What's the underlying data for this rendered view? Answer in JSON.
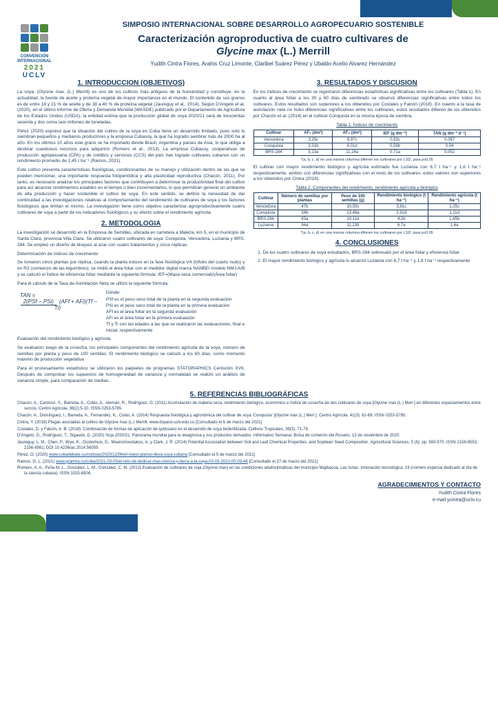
{
  "header": {
    "symposium": "SIMPOSIO INTERNACIONAL SOBRE DESARROLLO AGROPECUARIO SOSTENIBLE",
    "title_line1": "Caracterización agroproductiva de cuatro cultivares de",
    "title_line2_italic": "Glycine max",
    "title_line2_rest": " (L.) Merrill",
    "authors": "Yudith Cintra Flores, Arahis Cruz Limonte, Claribel Suárez Pérez y Ubaldo Acelio Alvarez Hernández"
  },
  "logo": {
    "convention": "CONVENCIÓN INTERNACIONAL",
    "year": "2021",
    "uclv": "UCLV"
  },
  "sections": {
    "intro_h": "1. INTRODUCCION (OBJETIVOS)",
    "metodo_h": "2. METODOLOGIA",
    "resultados_h": "3. RESULTADOS Y DISCUSION",
    "conclusiones_h": "4. CONCLUSIONES",
    "refs_h": "5. REFERENCIAS BIBLIOGRÁFICAS",
    "ack_h": "AGRADECIMIENTOS Y CONTACTO"
  },
  "intro": {
    "p1": "La soya, (Glycine max. (L.) Merrill) es uno de los cultivos más antiguos de la humanidad y constituye, en la actualidad, la fuente de aceite y proteína vegetal de mayor importancia en el mundo. El contenido de sus granos es de entre 18 y 21 % de aceite y de 38 a 40 % de proteína vegetal (Jaureguy et al., 2014). Según D'Angelo et al. (2020), en el último informe de Oferta y Demanda Mundial (WASDE) publicado por el Departamento de Agricultura de los Estados Unidos (USDA), la entidad estima que la producción global de soya 2020/21 será de trescientas sesenta y dos coma seis millones de toneladas.",
    "p2": "Pérez (2020) expresó que la situación del cultivo de la soya en Cuba tiene un desarrollo limitado, pues solo lo siembran pequeños y medianos productores y la empresa Cubasoy, la que ha logrado sembrar más de 2000 ha al año. En los últimos 10 años este grano se ha importado desde Brasil, Argentina y países de Asia, lo que obliga a destinar cuantiosos recursos para adquirirlo (Romero et al., 2013). La empresa Cubasoy, cooperativas de producción agropecuaria (CPA) y de créditos y servicios (CCS) del país han logrado cultivares cubanos con un rendimiento promedio de 1,45 t ha⁻¹ (Ramos, 2021).",
    "p3": "Este cultivo presenta características fisiológicas, condicionantes de su manejo y utilización dentro de las que se pueden mencionar, una importante respuesta fotoperiódica y alta plasticidad reproductiva (Chacón, 2011). Por tanto, es necesario analizar los principales factores que contribuyen a determinar la productividad final del cultivo para así alcanzar rendimientos estables en el tiempo o bien incrementarlos, lo que permitirán generar un ambiente de alta producción y hacer sostenible el cultivo de soya. En este sentido, se definió la necesidad de dar continuidad a las investigaciones relativas al comportamiento del rendimiento de cultivares de soya y los factores fisiológicos que limitan el mismo. La investigación tiene como objetivo caracterizar agroproductivamente cuatro cultivares de soya a partir de los indicadores fisiológicos y su efecto sobre el rendimiento agrícola."
  },
  "metodo": {
    "p1": "La investigación se desarrolló en la Empresa de Semillas, ubicada en carretera a Maleza, km 5, en el municipio de Santa Clara, provincia Villa Clara. Se utilizaron cuatro cultivares de soya: Conquista, Vencedora, Luziania y BRS-284. Se empleó un diseño de bloques al azar con cuatro tratamientos y cinco réplicas.",
    "p2": "Determinación de índices de crecimiento",
    "p3": "Se tomaron cinco plantas por réplica, cuando la planta estuvo en la fase fisiológica V4 (trifolio del cuarto nudo) y en R3 (comienzo de las legumbres); se midió el área foliar con el medidor digital marca NANBEI modelo NMJ-A/B y se calculó el Índice de eficiencia foliar mediante la siguiente fórmula:   IEF=(Masa seca comercial)/(Área foliar)",
    "p4": "Para el cálculo de la Tasa de Asimilación Neta se utilizó la siguiente fórmula:",
    "donde": "Dónde:",
    "psf": "PSf es el peso seco total de la planta en la segunda evaluación",
    "psi": "PSi es el peso seco total de la planta en la primera evaluación",
    "aff": "AFf es el área foliar en la segunda evaluación",
    "afi": "AFi es el área foliar en la primera evaluación",
    "tfti": "Tf y Ti son las edades a las que se realizaron las evaluaciones, final e inicial, respectivamente",
    "p5": "Evaluación del rendimiento biológico y agrícola",
    "p6": "Se evaluaron luego de la cosecha, los principales componentes del rendimiento agrícola de la soya, número de semillas por planta y peso de 100 semillas. El rendimiento biológico se calculó a los 60 días, como momento máximo de producción vegetativa",
    "p7": "Para el procesamiento estadístico se utilizaron los paquetes de programas STATGRAPHICS Centurión XVII. Después de comprobar los supuestos de homogeneidad de varianza y normalidad se realizó un análisis de varianza simple, para comparación de medias."
  },
  "resultados": {
    "p1": "En los índices de crecimiento se registraron diferencias estadísticas significativas entre los cultivares (Tabla 1). En cuanto al área foliar a los 30 y 60 días de sembrado se observó diferencias significativas entre todos los cultivares. Estos resultados son superiores a los obtenidos por Costales y Falcón (2018). En cuanto a la tasa de asimilación neta no hubo diferencias significativas entre los cultivares, estos resultados difieren de los obtenidos por Chacón et al. (2014) en el cultivar Conquista en la misma época de siembra.",
    "p2": "El cultivar con mayor rendimiento biológico y agrícola estimado fue Luziania con 6,7 t ha⁻¹ y 1,6 t ha⁻¹ respectivamente, ambos con diferencias significativas con el resto de los cultivares, estos valores son superiores a los obtenidos por Cintra (2018)."
  },
  "tabla1": {
    "caption": "Tabla 1. Índices de crecimiento",
    "headers": [
      "Cultivar",
      "AF₁ (dm²)",
      "AF₂ (dm²)",
      "IEF (g dm⁻²)",
      "TAN (g dm⁻² d⁻¹)"
    ],
    "rows": [
      [
        "Vencedora",
        "3,25c",
        "8,97c",
        "0,53c",
        "0,067"
      ],
      [
        "Conquista",
        "3,31b",
        "8,01d",
        "0,59b",
        "0,04"
      ],
      [
        "BRS-284",
        "5,13a",
        "11,14a",
        "0,71a",
        "0,052"
      ]
    ],
    "note": "*(a, b, c, d) en una misma columna difieren los cultivares por LSD, para p≤0,05"
  },
  "tabla2": {
    "caption": "Tabla 2. Componentes del rendimiento, rendimiento agrícola y biológico",
    "headers": [
      "Cultivar",
      "Número de semillas por plantas",
      "Peso de 100 semillas (g)",
      "Rendimiento biológico (t ha⁻¹)",
      "Rendimiento agrícola (t ha⁻¹)"
    ],
    "rows": [
      [
        "Vencedora",
        "47b",
        "10,93c",
        "3,81c",
        "1,25c"
      ],
      [
        "Conquista",
        "34b",
        "13,48a",
        "2,92d",
        "1,11d"
      ],
      [
        "BRS-284",
        "83a",
        "10,11d",
        "4,2b",
        "1,45b"
      ],
      [
        "Luziania",
        "94a",
        "11,23b",
        "6,7a",
        "1,6a"
      ]
    ],
    "note": "*(a, b, c, d) en una misma columna difieren los cultivares por LSD, para p≤0,05"
  },
  "conclusiones": {
    "c1": "De los cuatro cultivares de soya estudiados, BRS-284 sobresalió por el área foliar y eficiencia foliar.",
    "c2": "El mayor rendimiento biológico y agrícola lo alcanzó Luziania con 6,7 t ha⁻¹ y 1,6 t ha⁻¹ respectivamente"
  },
  "refs": {
    "r1": "Chacón, A., Cardoso, S., Barreda, A., Colás, A., Alemán, R., Rodríguez, G. (2011) Acumulación de materia seca, rendimiento biológico, económico e índice de cosecha de dos cultivares de soya [Glycine max (L.) Merr.] en diferentes espaciamientos entre surcos. Centro Agrícola, 38(2):5-10. ISSN 0253-5785.",
    "r2": "Chacón, A., Domínguez, I., Barreda, A., Fernández, K., Colás, A. (2014) Respuesta fisiológica y agronómica del cultivar de soya 'Conquista' [Glycine max (L.) Merr.]. Centro Agrícola, 41(3): 61-69. ISSN 0253-5785.",
    "r3": "Cintra, Y. (2018) Plagas asociadas al cultivo de Glycine max (L.) Merrill. www.dspace.uclv.edu.cu [Consultado el 6 de marzo del 2021]",
    "r4": "Costales, D. y Falcón, A. B. (2018). Combinación de formas de aplicación de quitosano en el desarrollo de soya biofertilizada. Cultivos Tropicales, 39(3), 71-79.",
    "r5": "D'Angelo, G., Rodríguez, T., Sigaudo, D. (2020) Soja 2020/21: Panorama mundial para la oleaginosa y sus productos derivados- Informativo Semanal. Bolsa de comercio del Rosario, 13 de noviembre de 2020.",
    "r6": "Jaureguy, L. M., Chen, P., Brye, K., Oosterhuis, D., Mauromoustakos, A. y Clark, J. R. (2014) Potential Association between Soil and Leaf Chemical Properties, and Soybean Seed Composition. Agricultural Sciences, 5 (6): pp. 560-570, ISSN 2156-8553, 2156-8561, DOI 10.4236/as.2014.56059.",
    "r7_pre": "Pérez, O. (2020) ",
    "r7_link": "www.cubadebate.cu/noticias/2020/12/06/el-mejor-pienso-lleva-soya-cubana",
    "r7_post": " [Consultado el 5 de marzo del 2021]",
    "r8_pre": "Ramos, G. L. (2021) ",
    "r8_link": "www.granma.cu/cuba/2021-03-03/el-reto-de-dedicar-mas-ciencia-y-tierra-a-la-soya-03-03-2021-00-03-46",
    "r8_post": " [Consultado el 27 de marzo del 2021]",
    "r9": "Romero, A. A., Peña M. L., González, L. M., González, C. M. (2013) Evaluación de cultivares de soja (Glycine max) en las condiciones edafoclimáticas del municipio Majibacoa. Las tunas. Innovación tecnológica, 19 (número especial dedicado al día de la ciencia cubana). ISSN 1025-6504."
  },
  "ack": {
    "name": "Yudith Cintra Flores",
    "email": "e-mail:ycintra@uclv.cu"
  }
}
